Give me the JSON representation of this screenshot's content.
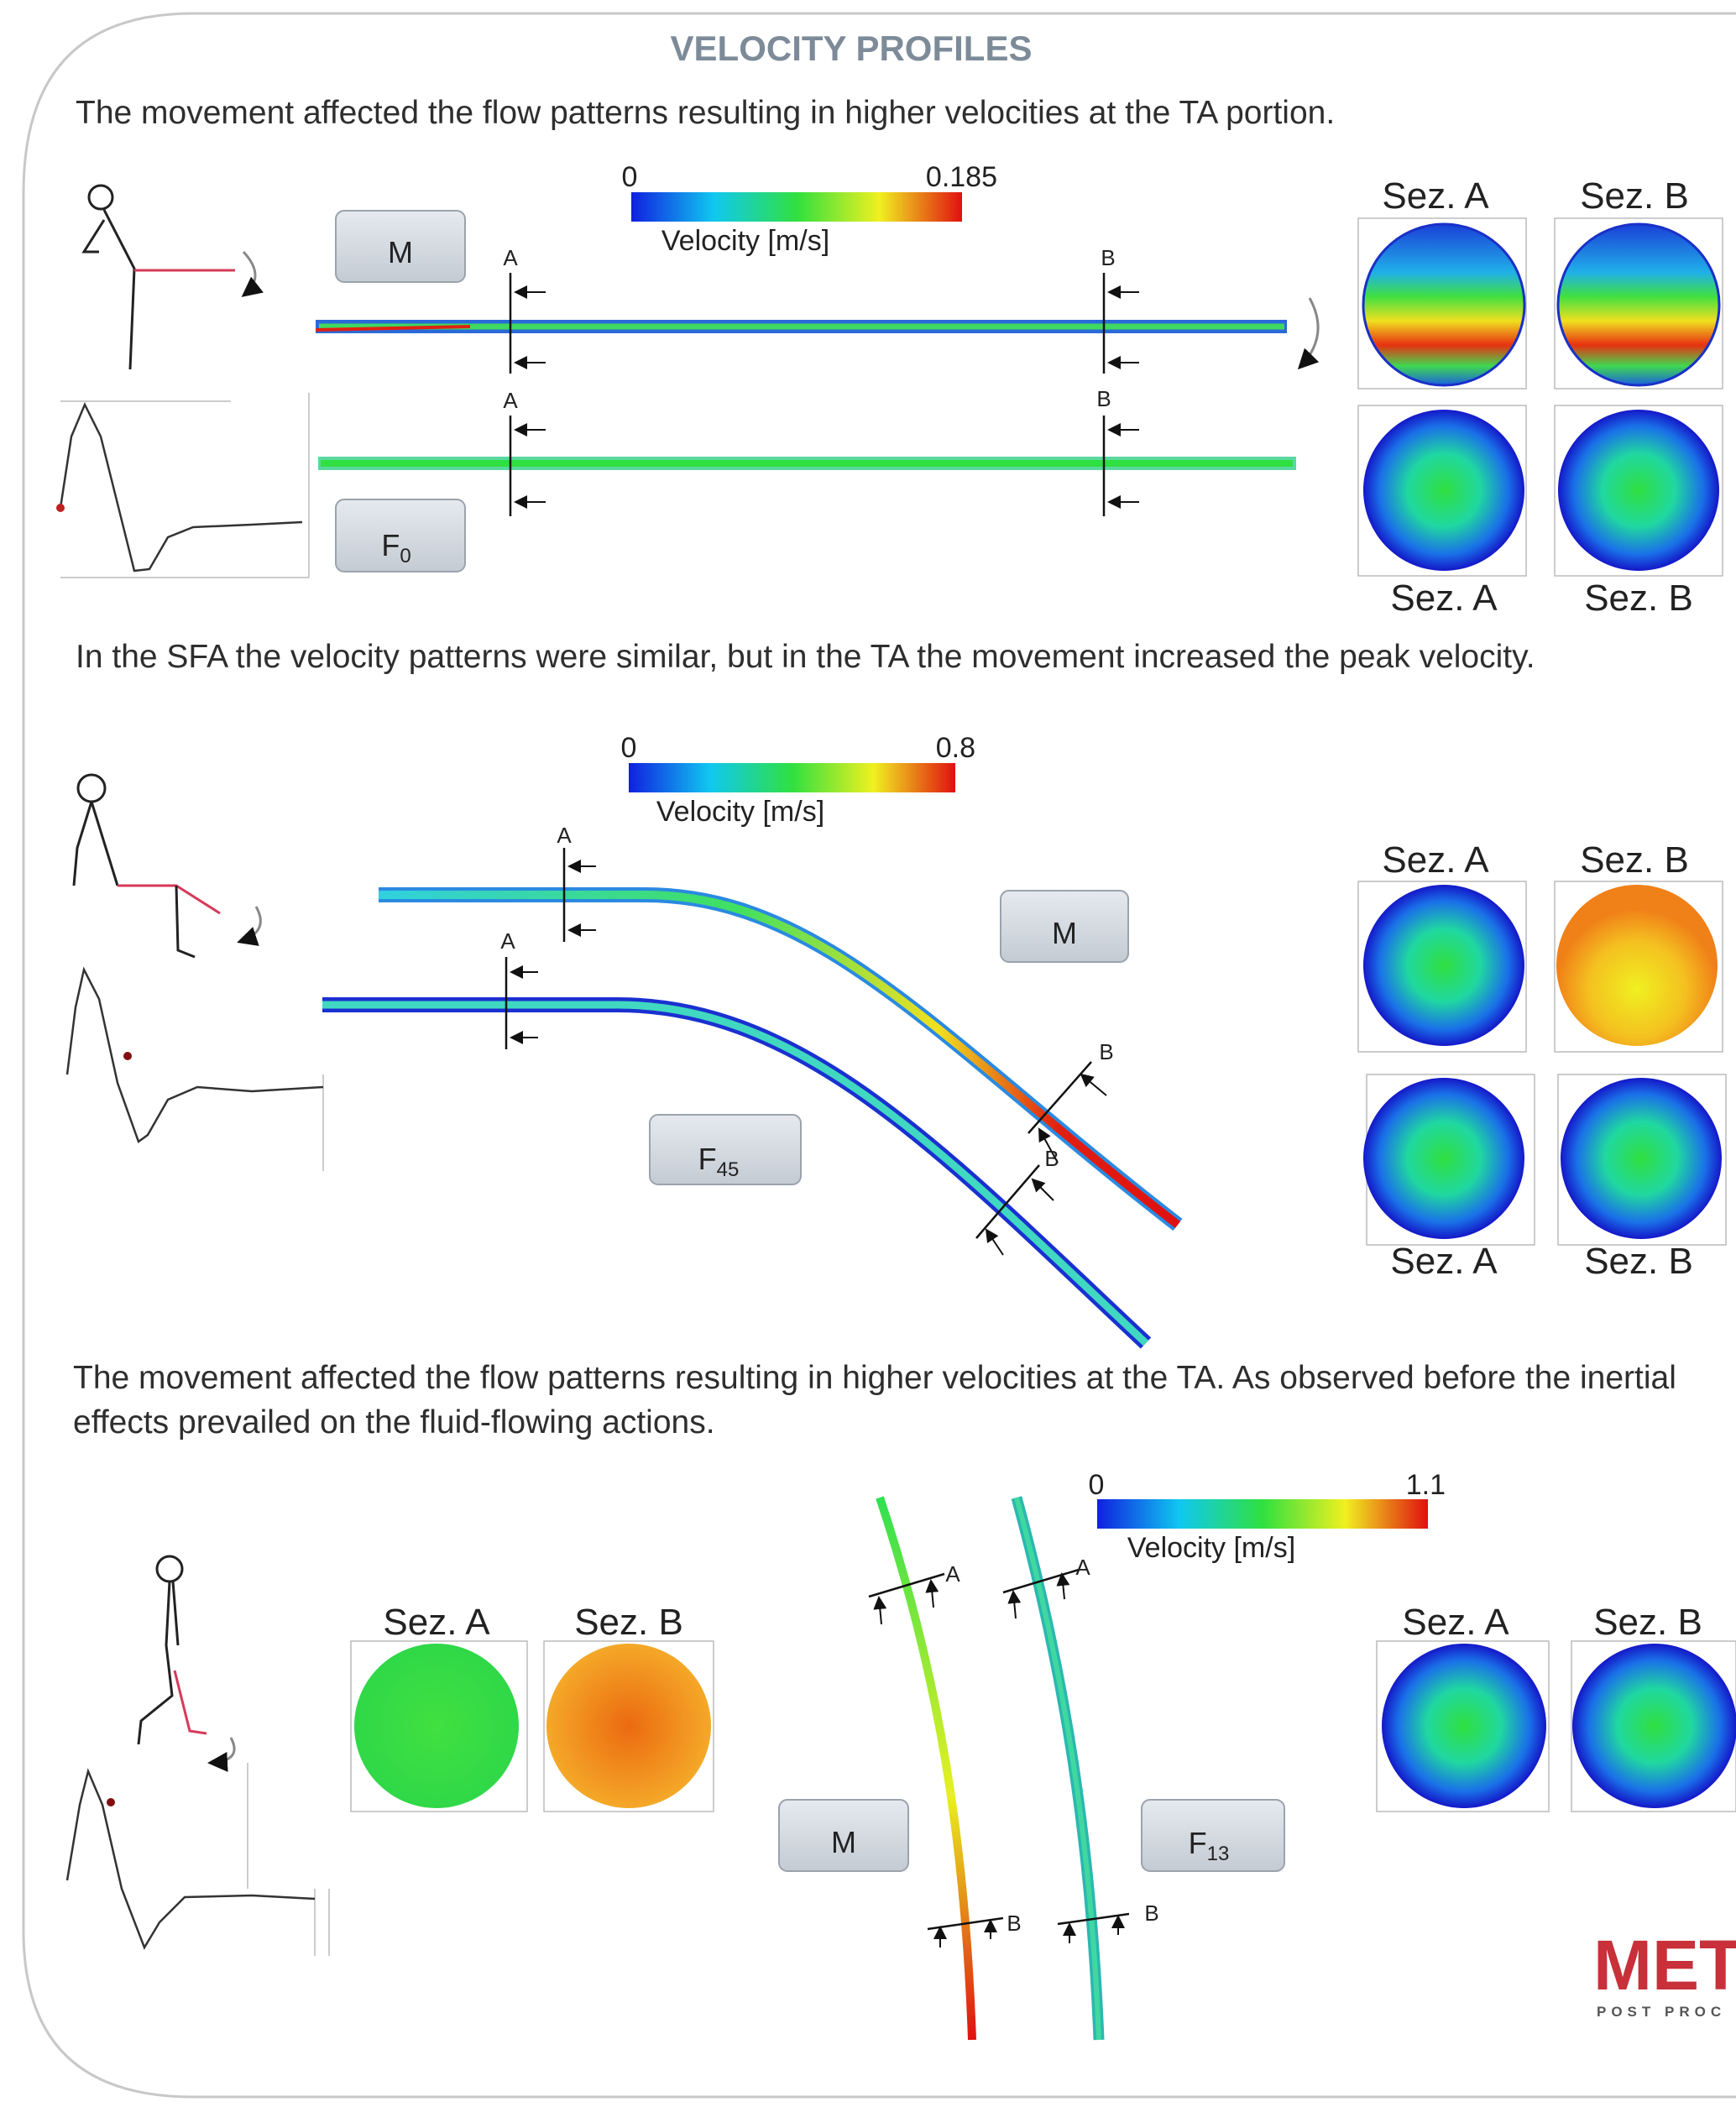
{
  "title": "VELOCITY PROFILES",
  "sections": [
    {
      "caption": "The movement affected the flow patterns resulting in higher velocities at the TA portion.",
      "colorbar": {
        "min": 0,
        "max": 0.185,
        "label": "Velocity [m/s]"
      },
      "cases": [
        {
          "name": "M"
        },
        {
          "name": "F",
          "sub": "0"
        }
      ],
      "cut_labels": [
        "A",
        "B",
        "A",
        "B"
      ],
      "section_labels": [
        "Sez. A",
        "Sez. B",
        "Sez. A",
        "Sez. B"
      ]
    },
    {
      "caption": "In the SFA the velocity patterns were similar, but in the TA the movement increased the peak velocity.",
      "colorbar": {
        "min": 0,
        "max": 0.8,
        "label": "Velocity [m/s]"
      },
      "cases": [
        {
          "name": "M"
        },
        {
          "name": "F",
          "sub": "45"
        }
      ],
      "cut_labels": [
        "A",
        "A",
        "B",
        "B"
      ],
      "section_labels": [
        "Sez. A",
        "Sez. B",
        "Sez. A",
        "Sez. B"
      ]
    },
    {
      "caption": "The movement affected the flow patterns resulting in higher velocities at the TA. As observed before the inertial effects prevailed on the fluid-flowing actions.",
      "colorbar": {
        "min": 0,
        "max": 1.1,
        "label": "Velocity [m/s]"
      },
      "cases": [
        {
          "name": "M"
        },
        {
          "name": "F",
          "sub": "13"
        }
      ],
      "cut_labels": [
        "A",
        "A",
        "B",
        "B"
      ],
      "section_labels": [
        "Sez. A",
        "Sez. B",
        "Sez. A",
        "Sez. B"
      ]
    }
  ],
  "logo": {
    "name": "MET",
    "tagline": "POST PROC"
  }
}
